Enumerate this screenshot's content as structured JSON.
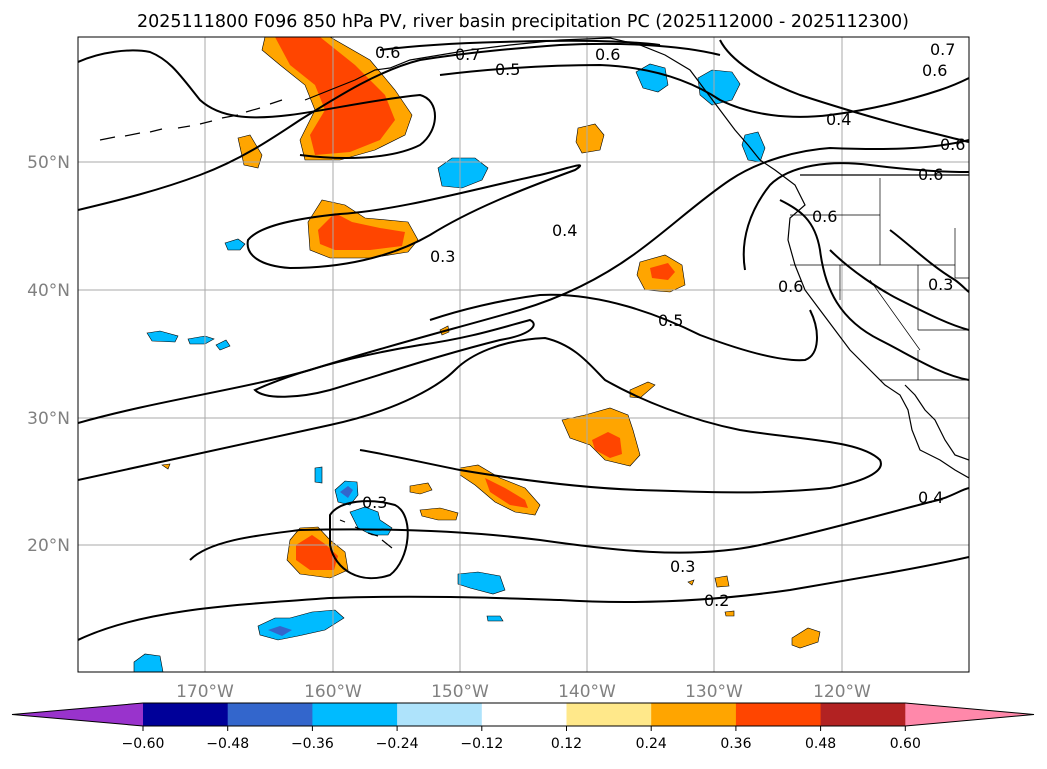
{
  "title": "2025111800 F096 850 hPa PV, river basin precipitation PC (2025112000 - 2025112300)",
  "lat_labels": [
    "50°N",
    "40°N",
    "30°N",
    "20°N"
  ],
  "lon_labels": [
    "170°W",
    "160°W",
    "150°W",
    "140°W",
    "130°W",
    "120°W"
  ],
  "contour_labels": [
    "0.7",
    "0.6",
    "0.5",
    "0.6",
    "0.4",
    "0.3",
    "0.4",
    "0.5",
    "0.6",
    "0.6",
    "0.6",
    "0.3",
    "0.3",
    "0.2",
    "0.4",
    "0.3",
    "0.7",
    "0.6",
    "0.6"
  ],
  "colorbar": {
    "ticks": [
      "−0.60",
      "−0.48",
      "−0.36",
      "−0.24",
      "−0.12",
      "0.12",
      "0.24",
      "0.36",
      "0.48",
      "0.60"
    ],
    "colors": [
      "#9933cc",
      "#000099",
      "#3366cc",
      "#00bbff",
      "#aee3fb",
      "#ffffff",
      "#ffe88a",
      "#ffa500",
      "#ff4500",
      "#b22222",
      "#ff88aa"
    ]
  },
  "colors": {
    "contour": "#000000",
    "grid": "#aaaaaa",
    "axis_label": "#808080",
    "positive_light": "#ffa500",
    "positive_dark": "#ff4500",
    "negative_light": "#00bbff",
    "negative_dark": "#3366cc"
  }
}
